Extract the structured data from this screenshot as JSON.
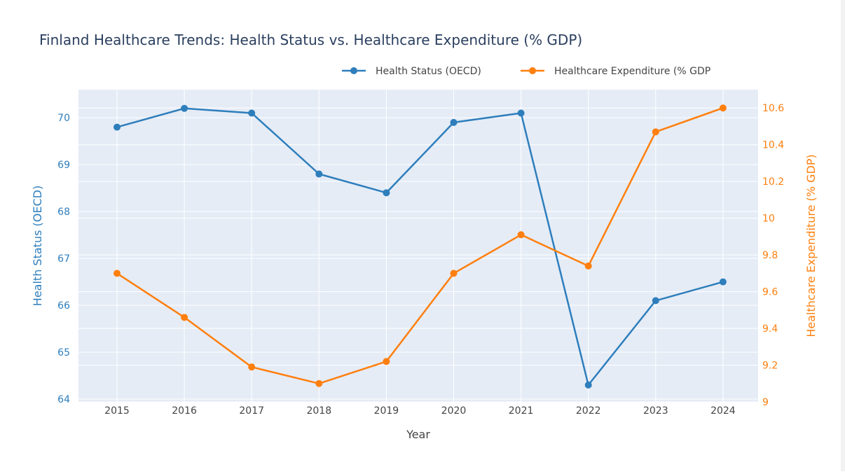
{
  "chart_data": {
    "type": "line",
    "title": "Finland Healthcare Trends: Health Status vs. Healthcare Expenditure (% GDP)",
    "xlabel": "Year",
    "ylabel_left": "Health Status (OECD)",
    "ylabel_right": "Healthcare Expenditure (% GDP)",
    "x": [
      2015,
      2016,
      2017,
      2018,
      2019,
      2020,
      2021,
      2022,
      2023,
      2024
    ],
    "x_tick_labels": [
      "2015",
      "2016",
      "2017",
      "2018",
      "2019",
      "2020",
      "2021",
      "2022",
      "2023",
      "2024"
    ],
    "ylim_left": [
      63.94,
      70.6
    ],
    "ylim_right": [
      9.0,
      10.7
    ],
    "y_left_ticks": [
      64,
      65,
      66,
      67,
      68,
      69,
      70
    ],
    "y_right_ticks": [
      9,
      9.2,
      9.4,
      9.6,
      9.8,
      10,
      10.2,
      10.4,
      10.6
    ],
    "y_right_tick_labels": [
      "9",
      "9.2",
      "9.4",
      "9.6",
      "9.8",
      "10",
      "10.2",
      "10.4",
      "10.6"
    ],
    "grid": true,
    "legend_position": "top-right",
    "series": [
      {
        "name": "Health Status (OECD)",
        "legend_label": "Health Status (OECD)",
        "axis": "left",
        "color": "#2e7ebc",
        "values": [
          69.8,
          70.2,
          70.1,
          68.8,
          68.4,
          69.9,
          70.1,
          64.3,
          66.1,
          66.5
        ]
      },
      {
        "name": "Healthcare Expenditure (% GDP)",
        "legend_label": "Healthcare Expenditure (% GDP",
        "axis": "right",
        "color": "#ff7f0e",
        "values": [
          9.7,
          9.46,
          9.19,
          9.1,
          9.22,
          9.7,
          9.91,
          9.74,
          10.47,
          10.6
        ]
      }
    ]
  },
  "colors": {
    "plot_background": "#e5ecf6",
    "grid": "#ffffff",
    "title": "#2a3f5f",
    "axis_text": "#444444",
    "left_axis": "#2e7ebc",
    "right_axis": "#ff7f0e"
  }
}
